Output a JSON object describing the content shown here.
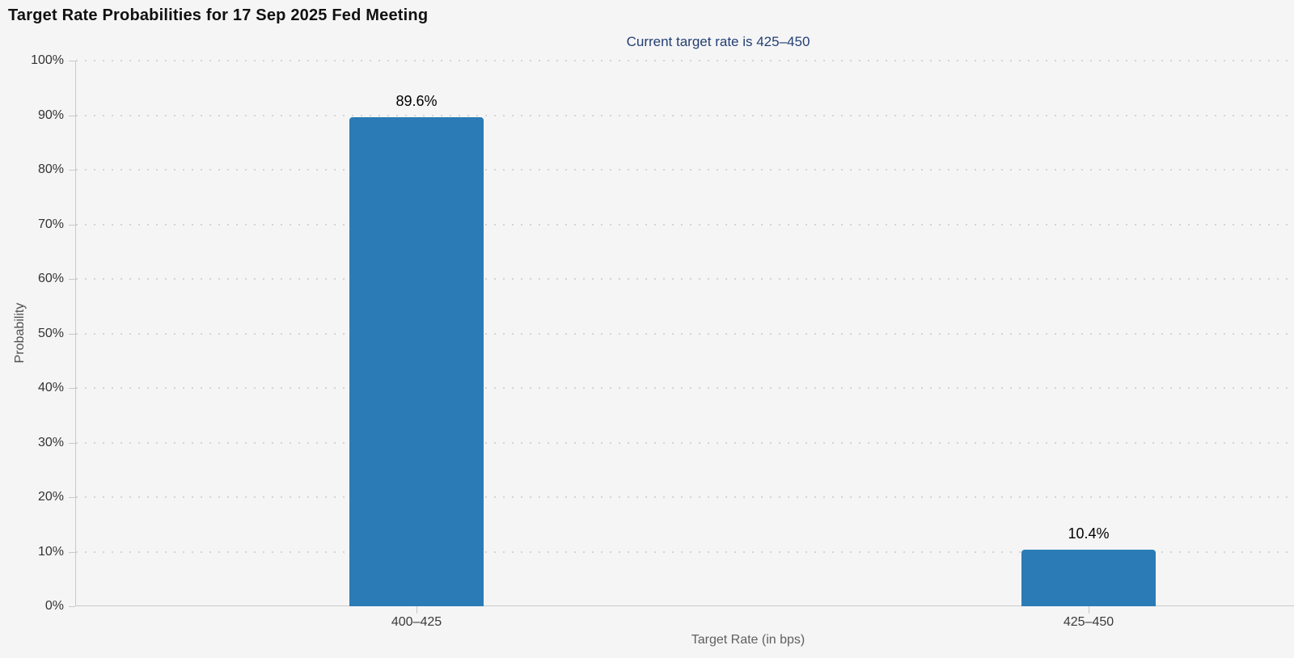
{
  "chart_data": {
    "type": "bar",
    "title": "Target Rate Probabilities for 17 Sep 2025 Fed Meeting",
    "subtitle": "Current target rate is 425–450",
    "categories": [
      "400–425",
      "425–450"
    ],
    "values": [
      89.6,
      10.4
    ],
    "value_labels": [
      "89.6%",
      "10.4%"
    ],
    "xlabel": "Target Rate (in bps)",
    "ylabel": "Probability",
    "ylim": [
      0,
      100
    ],
    "ytick_step": 10,
    "ytick_labels": [
      "0%",
      "10%",
      "20%",
      "30%",
      "40%",
      "50%",
      "60%",
      "70%",
      "80%",
      "90%",
      "100%"
    ],
    "grid": "horizontal-dotted",
    "legend": "none",
    "colors": {
      "bar": "#2b7cb6",
      "title": "#111111",
      "subtitle": "#233f72",
      "axis_line": "#c9c9cc",
      "grid_dot": "#d4d4d7",
      "tick_label": "#333333",
      "axis_title": "#5f5f5f",
      "value_label": "#000000",
      "background": "#f5f5f6"
    }
  }
}
